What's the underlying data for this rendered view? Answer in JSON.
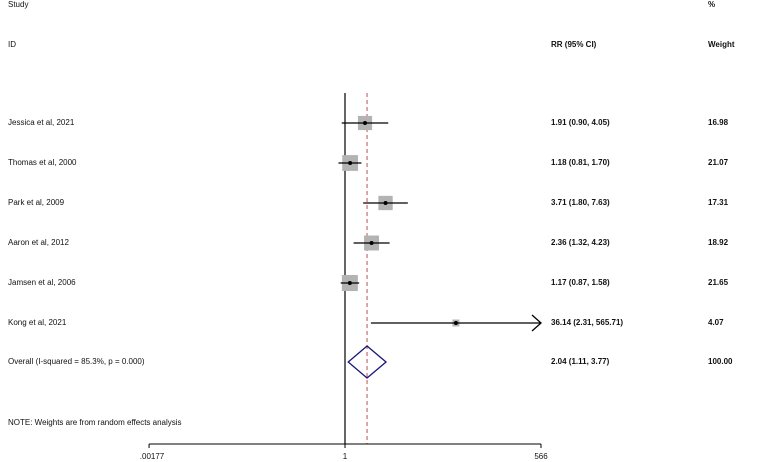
{
  "chart_data": {
    "type": "forest",
    "header": {
      "study_line1": "Study",
      "study_line2": "ID",
      "estimate": "RR (95% CI)",
      "weight_line1": "%",
      "weight_line2": "Weight"
    },
    "x_scale": "log",
    "x_ticks": [
      {
        "value": 0.00177,
        "label": ".00177"
      },
      {
        "value": 1,
        "label": "1"
      },
      {
        "value": 566,
        "label": "566"
      }
    ],
    "null_line": 1,
    "pooled_line": 2.04,
    "studies": [
      {
        "label": "Jessica et al, 2021",
        "rr": 1.91,
        "lower": 0.9,
        "upper": 4.05,
        "ci_text": "1.91 (0.90, 4.05)",
        "weight": 16.98,
        "weight_text": "16.98"
      },
      {
        "label": "Thomas et al, 2000",
        "rr": 1.18,
        "lower": 0.81,
        "upper": 1.7,
        "ci_text": "1.18 (0.81, 1.70)",
        "weight": 21.07,
        "weight_text": "21.07"
      },
      {
        "label": "Park et al, 2009",
        "rr": 3.71,
        "lower": 1.8,
        "upper": 7.63,
        "ci_text": "3.71 (1.80, 7.63)",
        "weight": 17.31,
        "weight_text": "17.31"
      },
      {
        "label": "Aaron et al, 2012",
        "rr": 2.36,
        "lower": 1.32,
        "upper": 4.23,
        "ci_text": "2.36 (1.32, 4.23)",
        "weight": 18.92,
        "weight_text": "18.92"
      },
      {
        "label": "Jamsen et al, 2006",
        "rr": 1.17,
        "lower": 0.87,
        "upper": 1.58,
        "ci_text": "1.17 (0.87, 1.58)",
        "weight": 21.65,
        "weight_text": "21.65"
      },
      {
        "label": "Kong et al, 2021",
        "rr": 36.14,
        "lower": 2.31,
        "upper": 565.71,
        "ci_text": "36.14 (2.31, 565.71)",
        "weight": 4.07,
        "weight_text": "4.07",
        "arrow_right": true
      }
    ],
    "overall": {
      "label": "Overall  (I-squared = 85.3%, p = 0.000)",
      "rr": 2.04,
      "lower": 1.11,
      "upper": 3.77,
      "ci_text": "2.04 (1.11, 3.77)",
      "weight_text": "100.00"
    },
    "note": "NOTE: Weights are from random effects analysis",
    "colors": {
      "box": "#b3b3b3",
      "diamond": "#1a1a7a",
      "pooled_line": "#c0504d",
      "axis": "#000000"
    }
  }
}
